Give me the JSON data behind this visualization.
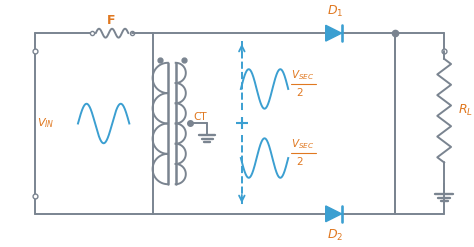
{
  "bg_color": "#ffffff",
  "gray": "#7a8490",
  "orange": "#e07820",
  "blue": "#3b9fd1",
  "fig_width": 4.74,
  "fig_height": 2.47,
  "dpi": 100,
  "lw": 1.4
}
